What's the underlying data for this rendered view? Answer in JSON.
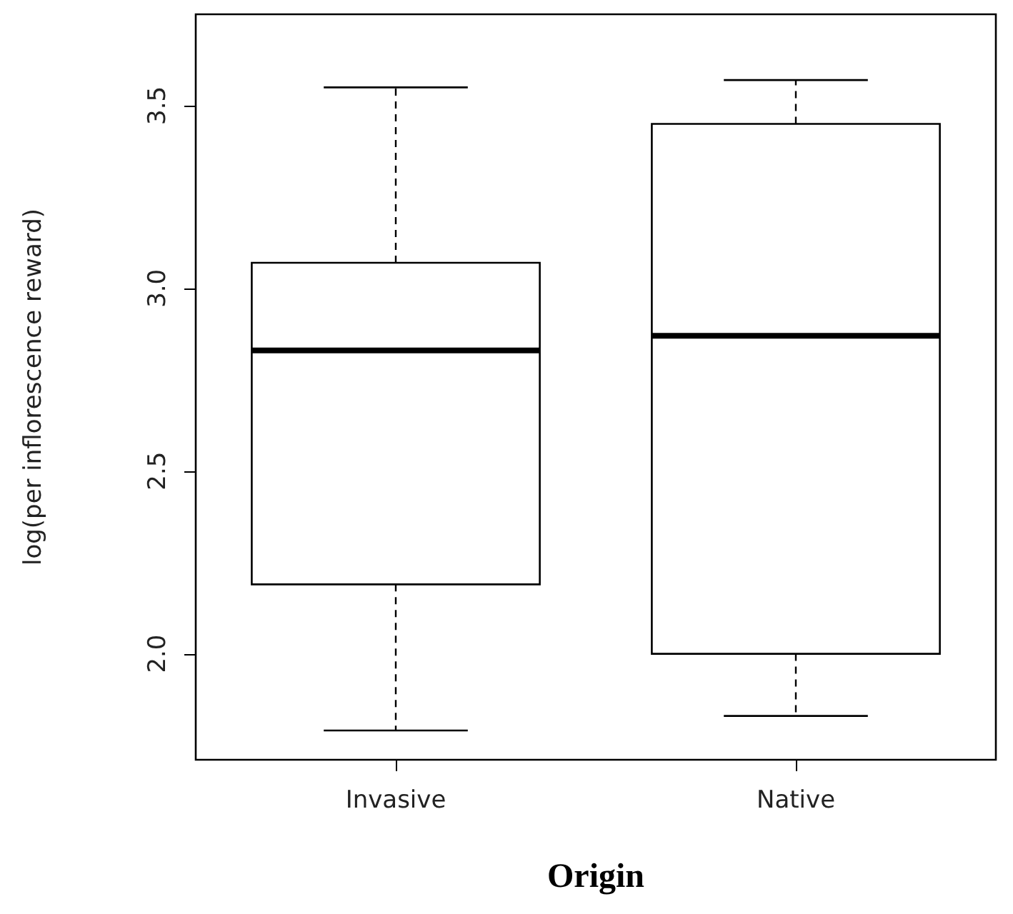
{
  "chart_data": {
    "type": "box",
    "xlabel": "Origin",
    "ylabel": "log(per inflorescence reward)",
    "categories": [
      "Invasive",
      "Native"
    ],
    "boxes": [
      {
        "low": 1.79,
        "q1": 2.19,
        "median": 2.83,
        "q3": 3.07,
        "high": 3.55
      },
      {
        "low": 1.83,
        "q1": 2.0,
        "median": 2.87,
        "q3": 3.45,
        "high": 3.57
      }
    ],
    "ylim": [
      1.71,
      3.75
    ],
    "yticks": [
      {
        "value": 2,
        "label": "2.0"
      },
      {
        "value": 2.5,
        "label": "2.5"
      },
      {
        "value": 3,
        "label": "3.0"
      },
      {
        "value": 3.5,
        "label": "3.5"
      }
    ],
    "grid": false,
    "line_style": "dashed"
  }
}
